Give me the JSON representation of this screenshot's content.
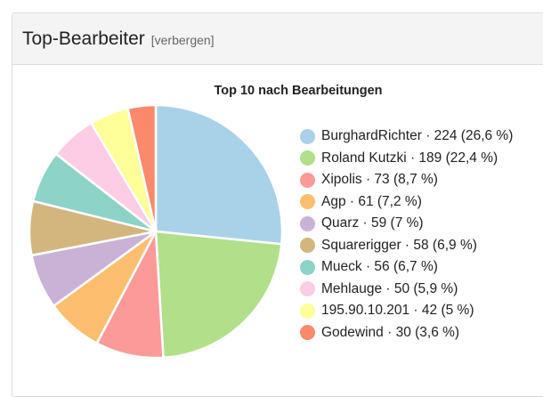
{
  "panel": {
    "title": "Top-Bearbeiter",
    "toggle_label": "[verbergen]"
  },
  "chart_data": {
    "type": "pie",
    "title": "Top 10 nach Bearbeitungen",
    "legend_position": "right",
    "start_angle": "top (12 o'clock), clockwise",
    "slices": [
      {
        "label": "BurghardRichter",
        "value": 224,
        "percent": "26,6 %",
        "color": "#a9d2e8",
        "legend_text": "BurghardRichter · 224 (26,6 %)"
      },
      {
        "label": "Roland Kutzki",
        "value": 189,
        "percent": "22,4 %",
        "color": "#b2df8a",
        "legend_text": "Roland Kutzki · 189 (22,4 %)"
      },
      {
        "label": "Xipolis",
        "value": 73,
        "percent": "8,7 %",
        "color": "#fb9a99",
        "legend_text": "Xipolis · 73 (8,7 %)"
      },
      {
        "label": "Agp",
        "value": 61,
        "percent": "7,2 %",
        "color": "#fdbf6f",
        "legend_text": "Agp · 61 (7,2 %)"
      },
      {
        "label": "Quarz",
        "value": 59,
        "percent": "7 %",
        "color": "#cab2d6",
        "legend_text": "Quarz · 59 (7 %)"
      },
      {
        "label": "Squarerigger",
        "value": 58,
        "percent": "6,9 %",
        "color": "#d2b67e",
        "legend_text": "Squarerigger · 58 (6,9 %)"
      },
      {
        "label": "Mueck",
        "value": 56,
        "percent": "6,7 %",
        "color": "#8dd3c7",
        "legend_text": "Mueck · 56 (6,7 %)"
      },
      {
        "label": "Mehlauge",
        "value": 50,
        "percent": "5,9 %",
        "color": "#fccde5",
        "legend_text": "Mehlauge · 50 (5,9 %)"
      },
      {
        "label": "195.90.10.201",
        "value": 42,
        "percent": "5 %",
        "color": "#ffff99",
        "legend_text": "195.90.10.201 · 42 (5 %)"
      },
      {
        "label": "Godewind",
        "value": 30,
        "percent": "3,6 %",
        "color": "#fb8a6c",
        "legend_text": "Godewind · 30 (3,6 %)"
      }
    ]
  }
}
